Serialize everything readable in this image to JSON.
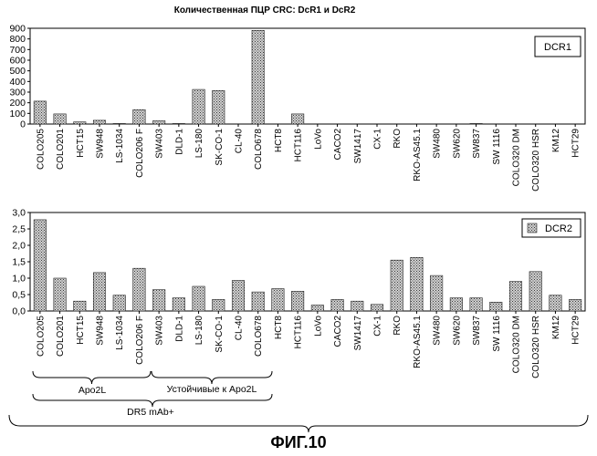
{
  "figure_title": "Количественная ПЦР CRC: DcR1 и DcR2",
  "figure_label": "ФИГ.10",
  "groups": {
    "apo2l": "Apo2L",
    "resistant": "Устойчивые к Apo2L",
    "dr5": "DR5 mAb+"
  },
  "chart_data": [
    {
      "type": "bar",
      "legend": "DCR1",
      "legend_position": "top-right",
      "ylim": [
        0,
        900
      ],
      "yticks": [
        0,
        100,
        200,
        300,
        400,
        500,
        600,
        700,
        800,
        900
      ],
      "categories": [
        "COLO205",
        "COLO201",
        "HCT15",
        "SW948",
        "LS-1034",
        "COLO206 F",
        "SW403",
        "DLD-1",
        "LS-180",
        "SK-CO-1",
        "CL-40",
        "COLO678",
        "HCT8",
        "HCT116",
        "LoVo",
        "CACO2",
        "SW1417",
        "CX-1",
        "RKO",
        "RKO-AS45.1",
        "SW480",
        "SW620",
        "SW837",
        "SW 1116",
        "COLO320 DM",
        "COLO320 HSR",
        "KM12",
        "HCT29"
      ],
      "values": [
        215,
        95,
        20,
        35,
        5,
        135,
        30,
        5,
        325,
        315,
        0,
        880,
        0,
        95,
        0,
        0,
        0,
        0,
        0,
        0,
        0,
        0,
        5,
        0,
        0,
        0,
        0,
        0
      ]
    },
    {
      "type": "bar",
      "legend": "DCR2",
      "legend_position": "top-right",
      "ylim": [
        0,
        3.0
      ],
      "yticks": [
        "0,0",
        "0,5",
        "1,0",
        "1,5",
        "2,0",
        "2,5",
        "3,0"
      ],
      "categories": [
        "COLO205",
        "COLO201",
        "HCT15",
        "SW948",
        "LS-1034",
        "COLO206 F",
        "SW403",
        "DLD-1",
        "LS-180",
        "SK-CO-1",
        "CL-40",
        "COLO678",
        "HCT8",
        "HCT116",
        "LoVo",
        "CACO2",
        "SW1417",
        "CX-1",
        "RKO",
        "RKO-AS45.1",
        "SW480",
        "SW620",
        "SW837",
        "SW 1116",
        "COLO320 DM",
        "COLO320 HSR",
        "KM12",
        "HCT29"
      ],
      "values": [
        2.78,
        1.0,
        0.3,
        1.17,
        0.48,
        1.3,
        0.65,
        0.4,
        0.75,
        0.35,
        0.93,
        0.58,
        0.68,
        0.6,
        0.18,
        0.35,
        0.3,
        0.2,
        1.55,
        1.63,
        1.08,
        0.4,
        0.4,
        0.27,
        0.9,
        1.2,
        0.48,
        0.35
      ]
    }
  ]
}
